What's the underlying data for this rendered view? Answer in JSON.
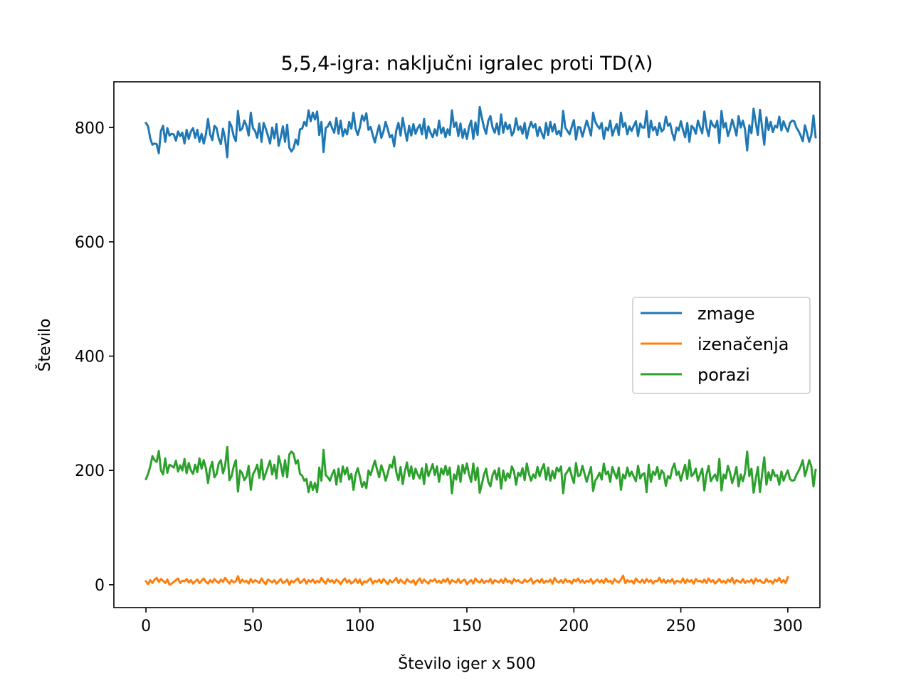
{
  "chart_data": {
    "type": "line",
    "title": "5,5,4-igra: naključni igralec proti TD(λ)",
    "xlabel": "Število iger x 500",
    "ylabel": "Število",
    "xlim": [
      -15,
      315
    ],
    "ylim": [
      -40,
      880
    ],
    "xticks": [
      0,
      50,
      100,
      150,
      200,
      250,
      300
    ],
    "yticks": [
      0,
      200,
      400,
      600,
      800
    ],
    "grid": false,
    "legend_position": "center-right",
    "series": [
      {
        "name": "zmage",
        "color": "#1f77b4",
        "x_start": 0,
        "x_step": 1,
        "values": [
          808,
          802,
          781,
          770,
          772,
          771,
          755,
          794,
          803,
          775,
          799,
          786,
          789,
          788,
          777,
          793,
          785,
          791,
          772,
          796,
          780,
          793,
          799,
          782,
          796,
          775,
          789,
          772,
          788,
          815,
          788,
          778,
          803,
          799,
          781,
          771,
          798,
          780,
          748,
          810,
          802,
          785,
          776,
          829,
          795,
          798,
          812,
          803,
          786,
          826,
          799,
          794,
          782,
          807,
          775,
          808,
          798,
          786,
          772,
          800,
          781,
          806,
          768,
          783,
          802,
          775,
          805,
          765,
          758,
          764,
          779,
          770,
          797,
          798,
          810,
          803,
          830,
          811,
          826,
          814,
          828,
          787,
          810,
          757,
          799,
          802,
          810,
          799,
          791,
          817,
          789,
          812,
          785,
          797,
          788,
          810,
          798,
          826,
          798,
          787,
          801,
          821,
          812,
          825,
          796,
          801,
          787,
          774,
          790,
          804,
          782,
          793,
          810,
          797,
          783,
          787,
          767,
          795,
          808,
          786,
          817,
          796,
          777,
          803,
          786,
          806,
          789,
          799,
          805,
          788,
          815,
          781,
          802,
          791,
          783,
          797,
          786,
          812,
          790,
          800,
          783,
          797,
          787,
          830,
          801,
          809,
          785,
          807,
          782,
          797,
          780,
          801,
          812,
          780,
          809,
          787,
          836,
          817,
          800,
          789,
          812,
          820,
          800,
          791,
          807,
          788,
          823,
          791,
          809,
          797,
          805,
          786,
          793,
          816,
          796,
          802,
          789,
          808,
          781,
          798,
          810,
          800,
          806,
          785,
          801,
          790,
          781,
          808,
          787,
          810,
          793,
          806,
          788,
          794,
          785,
          829,
          800,
          794,
          788,
          801,
          813,
          779,
          801,
          800,
          784,
          798,
          812,
          800,
          786,
          826,
          810,
          803,
          798,
          808,
          780,
          800,
          795,
          812,
          786,
          797,
          806,
          787,
          826,
          801,
          808,
          788,
          802,
          794,
          803,
          811,
          785,
          807,
          800,
          800,
          829,
          783,
          812,
          795,
          801,
          787,
          808,
          793,
          797,
          819,
          803,
          807,
          790,
          778,
          800,
          795,
          811,
          796,
          783,
          808,
          775,
          803,
          799,
          789,
          812,
          800,
          790,
          828,
          800,
          785,
          812,
          804,
          800,
          812,
          773,
          829,
          800,
          808,
          785,
          797,
          814,
          801,
          786,
          820,
          800,
          812,
          797,
          760,
          804,
          790,
          833,
          809,
          787,
          831,
          799,
          770,
          818,
          796,
          810,
          792,
          803,
          800,
          819,
          795,
          811,
          801,
          793,
          808,
          812,
          811,
          800,
          794,
          786,
          776,
          804,
          790,
          775,
          787,
          821,
          783
        ]
      },
      {
        "name": "izenačenja",
        "color": "#ff7f0e",
        "x_start": 0,
        "x_step": 1,
        "values": [
          6,
          1,
          8,
          3,
          9,
          12,
          5,
          10,
          7,
          3,
          9,
          0,
          2,
          5,
          8,
          11,
          3,
          7,
          6,
          10,
          4,
          8,
          2,
          6,
          9,
          3,
          7,
          11,
          5,
          2,
          8,
          4,
          10,
          6,
          3,
          9,
          5,
          12,
          7,
          2,
          8,
          4,
          6,
          15,
          3,
          9,
          5,
          7,
          2,
          10,
          4,
          8,
          6,
          3,
          11,
          5,
          1,
          9,
          7,
          4,
          8,
          2,
          6,
          10,
          3,
          5,
          9,
          0,
          7,
          4,
          8,
          11,
          3,
          6,
          10,
          2,
          8,
          5,
          9,
          3,
          7,
          4,
          12,
          6,
          2,
          10,
          5,
          8,
          3,
          9,
          6,
          1,
          7,
          11,
          4,
          8,
          2,
          5,
          10,
          3,
          9,
          0,
          6,
          4,
          8,
          11,
          2,
          7,
          5,
          9,
          3,
          10,
          6,
          1,
          8,
          4,
          7,
          12,
          3,
          9,
          5,
          2,
          10,
          6,
          4,
          8,
          0,
          7,
          11,
          3,
          9,
          5,
          2,
          8,
          6,
          10,
          4,
          7,
          3,
          9,
          5,
          11,
          2,
          8,
          6,
          4,
          10,
          3,
          7,
          9,
          1,
          5,
          8,
          2,
          11,
          6,
          4,
          9,
          3,
          7,
          5,
          10,
          2,
          8,
          6,
          4,
          9,
          3,
          11,
          5,
          7,
          2,
          10,
          6,
          8,
          4,
          3,
          9,
          5,
          7,
          11,
          2,
          6,
          8,
          4,
          10,
          3,
          7,
          5,
          9,
          2,
          12,
          6,
          4,
          8,
          3,
          10,
          5,
          7,
          2,
          9,
          6,
          11,
          4,
          8,
          3,
          7,
          5,
          10,
          2,
          6,
          9,
          4,
          8,
          3,
          11,
          5,
          7,
          2,
          10,
          6,
          4,
          9,
          16,
          3,
          8,
          5,
          7,
          2,
          11,
          6,
          4,
          9,
          3,
          10,
          5,
          8,
          2,
          7,
          6,
          12,
          4,
          9,
          3,
          8,
          5,
          10,
          2,
          7,
          6,
          4,
          11,
          3,
          9,
          5,
          8,
          2,
          10,
          6,
          7,
          4,
          9,
          3,
          11,
          5,
          8,
          2,
          6,
          10,
          4,
          7,
          3,
          9,
          5,
          12,
          2,
          8,
          6,
          4,
          10,
          3,
          7,
          5,
          9,
          2,
          11,
          6,
          8,
          4,
          3,
          10,
          5,
          7,
          2,
          9,
          6,
          12,
          4,
          8,
          3,
          13
        ]
      },
      {
        "name": "porazi",
        "color": "#2ca02c",
        "x_start": 0,
        "x_step": 1,
        "values": [
          185,
          194,
          207,
          225,
          218,
          215,
          234,
          200,
          193,
          221,
          196,
          210,
          208,
          205,
          217,
          198,
          209,
          200,
          220,
          195,
          213,
          200,
          194,
          210,
          197,
          221,
          203,
          218,
          204,
          178,
          203,
          215,
          188,
          194,
          212,
          218,
          195,
          208,
          241,
          183,
          190,
          207,
          218,
          163,
          200,
          195,
          183,
          189,
          208,
          166,
          193,
          200,
          210,
          187,
          219,
          184,
          195,
          206,
          217,
          193,
          210,
          186,
          225,
          210,
          190,
          218,
          188,
          228,
          233,
          229,
          212,
          218,
          194,
          191,
          182,
          185,
          162,
          180,
          166,
          178,
          162,
          205,
          182,
          236,
          192,
          188,
          182,
          193,
          201,
          175,
          203,
          180,
          207,
          193,
          205,
          184,
          194,
          166,
          193,
          204,
          189,
          171,
          180,
          169,
          200,
          192,
          205,
          217,
          202,
          188,
          209,
          198,
          182,
          195,
          210,
          205,
          224,
          197,
          183,
          206,
          176,
          198,
          214,
          190,
          207,
          185,
          203,
          193,
          186,
          204,
          176,
          211,
          190,
          200,
          211,
          192,
          207,
          180,
          203,
          193,
          208,
          192,
          205,
          160,
          193,
          184,
          208,
          180,
          210,
          195,
          212,
          193,
          180,
          212,
          183,
          205,
          161,
          176,
          193,
          203,
          180,
          172,
          192,
          200,
          184,
          204,
          168,
          200,
          182,
          195,
          187,
          207,
          199,
          175,
          196,
          190,
          204,
          183,
          212,
          194,
          182,
          193,
          187,
          206,
          190,
          202,
          211,
          184,
          205,
          182,
          199,
          186,
          205,
          198,
          207,
          160,
          193,
          198,
          205,
          190,
          178,
          213,
          190,
          192,
          208,
          194,
          180,
          193,
          206,
          164,
          182,
          188,
          196,
          184,
          212,
          193,
          198,
          180,
          206,
          195,
          186,
          205,
          166,
          193,
          186,
          205,
          190,
          198,
          189,
          181,
          208,
          186,
          193,
          195,
          162,
          210,
          180,
          198,
          192,
          206,
          185,
          200,
          195,
          173,
          190,
          186,
          203,
          212,
          192,
          198,
          182,
          197,
          210,
          185,
          218,
          190,
          194,
          203,
          182,
          193,
          203,
          165,
          193,
          208,
          181,
          188,
          193,
          182,
          220,
          165,
          193,
          186,
          208,
          196,
          178,
          190,
          206,
          172,
          193,
          181,
          196,
          233,
          190,
          203,
          161,
          185,
          206,
          162,
          194,
          223,
          175,
          197,
          183,
          201,
          190,
          192,
          175,
          198,
          182,
          192,
          200,
          185,
          182,
          183,
          192,
          199,
          207,
          218,
          190,
          203,
          218,
          207,
          172,
          201
        ]
      }
    ]
  }
}
